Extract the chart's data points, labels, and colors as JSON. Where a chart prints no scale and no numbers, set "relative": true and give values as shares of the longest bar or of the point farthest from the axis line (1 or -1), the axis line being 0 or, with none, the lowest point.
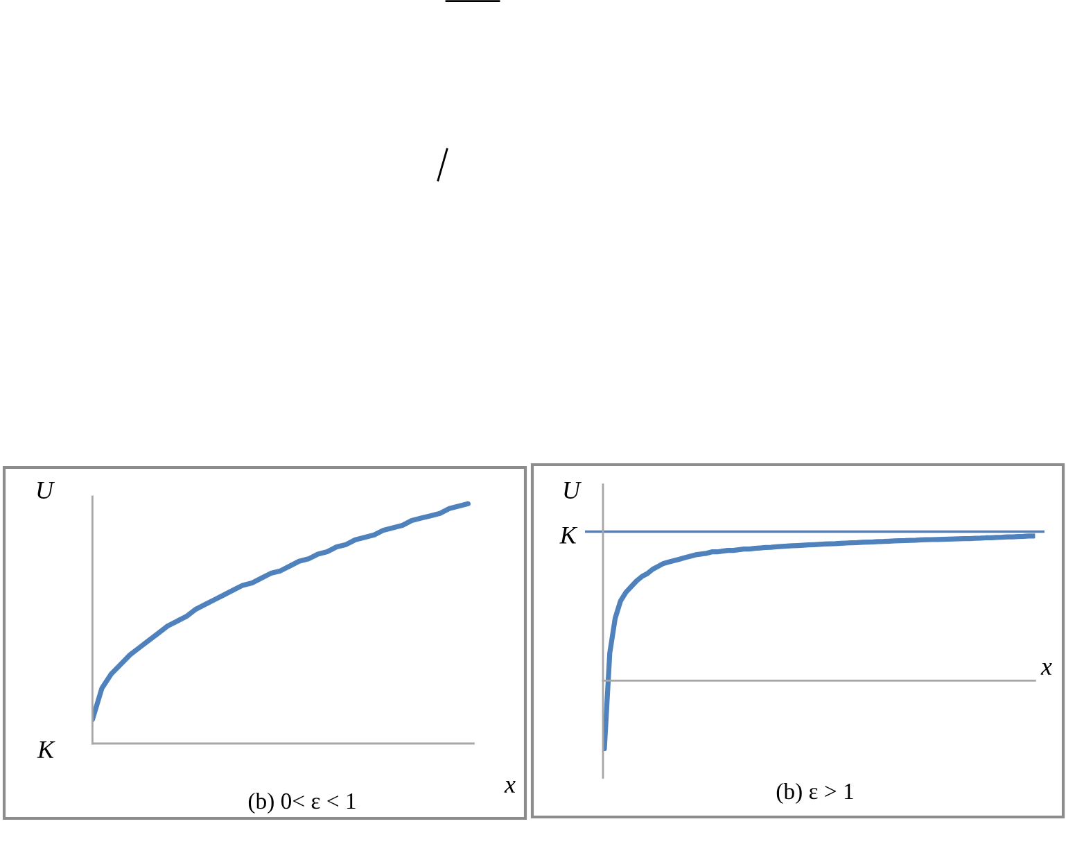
{
  "chart_data": [
    {
      "type": "line",
      "title": "(b) 0< ε < 1",
      "xlabel": "x",
      "ylabel": "U",
      "relative": true,
      "categories": [
        null,
        null,
        null,
        null,
        null,
        null,
        null,
        null,
        null,
        null,
        null,
        null,
        null,
        null,
        null,
        null,
        null,
        null,
        null,
        null,
        null,
        null,
        null,
        null,
        null,
        null,
        null,
        null,
        null,
        null,
        null,
        null,
        null,
        null,
        null,
        null,
        null,
        null,
        null,
        null,
        null
      ],
      "series": [
        {
          "color": "#4f81bd",
          "values": [
            0.1,
            0.23,
            0.29,
            0.33,
            0.37,
            0.4,
            0.43,
            0.46,
            0.49,
            0.51,
            0.53,
            0.56,
            0.58,
            0.6,
            0.62,
            0.64,
            0.66,
            0.67,
            0.69,
            0.71,
            0.72,
            0.74,
            0.76,
            0.77,
            0.79,
            0.8,
            0.82,
            0.83,
            0.85,
            0.86,
            0.87,
            0.89,
            0.9,
            0.91,
            0.93,
            0.94,
            0.95,
            0.96,
            0.98,
            0.99,
            1.0
          ]
        }
      ],
      "annotations": [
        "K"
      ]
    },
    {
      "type": "line",
      "title": "(b) ε > 1",
      "xlabel": "x",
      "ylabel": "U",
      "relative": true,
      "categories": [
        null,
        null,
        null,
        null,
        null,
        null,
        null,
        null,
        null,
        null,
        null,
        null,
        null,
        null,
        null,
        null,
        null,
        null,
        null,
        null,
        null,
        null,
        null,
        null,
        null,
        null,
        null,
        null,
        null,
        null,
        null,
        null,
        null,
        null,
        null,
        null,
        null,
        null,
        null,
        null,
        null,
        null,
        null,
        null,
        null,
        null,
        null,
        null,
        null,
        null,
        null,
        null,
        null,
        null,
        null,
        null,
        null,
        null,
        null,
        null,
        null,
        null,
        null,
        null,
        null,
        null,
        null,
        null,
        null,
        null,
        null,
        null,
        null,
        null,
        null,
        null,
        null,
        null,
        null,
        null,
        null
      ],
      "series": [
        {
          "color": "#4f81bd",
          "values": [
            -0.47,
            0.19,
            0.43,
            0.55,
            0.61,
            0.65,
            0.69,
            0.72,
            0.74,
            0.77,
            0.79,
            0.81,
            0.82,
            0.83,
            0.84,
            0.85,
            0.86,
            0.87,
            0.875,
            0.88,
            0.89,
            0.89,
            0.895,
            0.9,
            0.9,
            0.905,
            0.91,
            0.91,
            0.914,
            0.917,
            0.92,
            0.922,
            0.925,
            0.928,
            0.93,
            0.932,
            0.934,
            0.936,
            0.938,
            0.94,
            0.942,
            0.944,
            0.946,
            0.947,
            0.949,
            0.951,
            0.953,
            0.954,
            0.956,
            0.958,
            0.959,
            0.961,
            0.962,
            0.964,
            0.966,
            0.967,
            0.968,
            0.97,
            0.971,
            0.973,
            0.974,
            0.975,
            0.976,
            0.977,
            0.978,
            0.979,
            0.98,
            0.981,
            0.982,
            0.984,
            0.985,
            0.987,
            0.988,
            0.99,
            0.991,
            0.993,
            0.994,
            0.996,
            0.997,
            0.999,
            1.0
          ]
        }
      ],
      "ref_lines": [
        {
          "axis": "y",
          "value": 1.03,
          "label": "K",
          "color": "#4f81bd"
        }
      ]
    }
  ]
}
